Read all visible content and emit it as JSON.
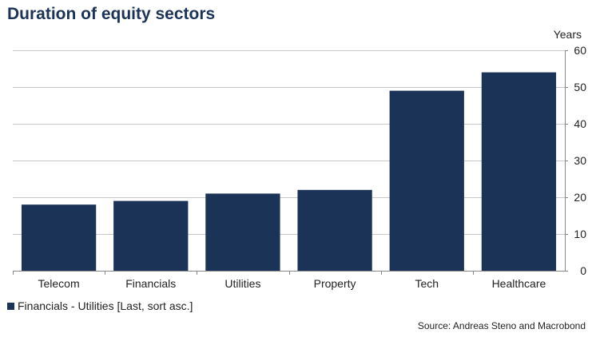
{
  "chart_data": {
    "type": "bar",
    "title": "Duration of equity sectors",
    "categories": [
      "Telecom",
      "Financials",
      "Utilities",
      "Property",
      "Tech",
      "Healthcare"
    ],
    "values": [
      18,
      19,
      21,
      22,
      49,
      54
    ],
    "unit_label": "Years",
    "ylim": [
      0,
      60
    ],
    "yticks": [
      0,
      10,
      20,
      30,
      40,
      50,
      60
    ],
    "y_axis_side": "right",
    "grid": true,
    "legend": {
      "placement": "bottom-left",
      "entries": [
        {
          "label": "Financials  - Utilities [Last, sort asc.]",
          "color": "#1c3358"
        }
      ]
    },
    "bar_color": "#1c3358",
    "source": "Source: Andreas Steno and Macrobond"
  }
}
